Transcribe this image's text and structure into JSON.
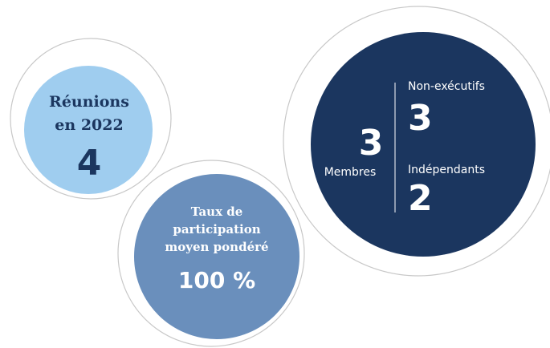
{
  "meetings": {
    "label_line1": "Réunions",
    "label_line2": "en 2022",
    "value": "4"
  },
  "participation": {
    "label_line1": "Taux de",
    "label_line2": "participation",
    "label_line3": "moyen pondéré",
    "value": "100 %"
  },
  "members": {
    "total": "3",
    "total_label": "Membres",
    "non_executive_label": "Non-exécutifs",
    "non_executive": "3",
    "independent_label": "Indépendants",
    "independent": "2"
  }
}
